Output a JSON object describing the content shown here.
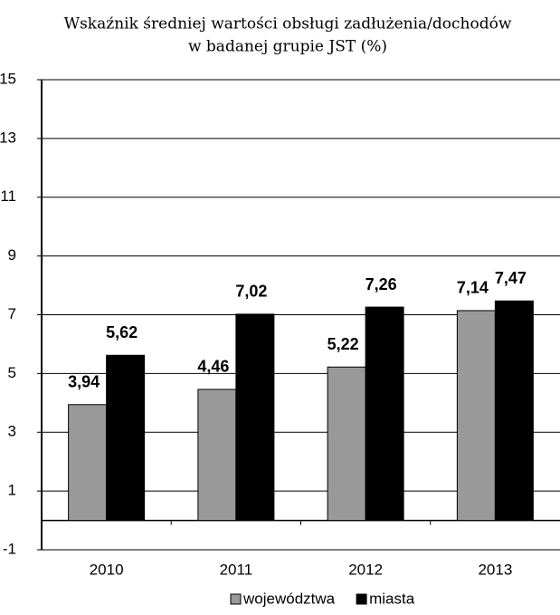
{
  "chart_data": {
    "type": "bar",
    "title": [
      "Wskaźnik średniej wartości obsługi zadłużenia/dochodów",
      "w badanej grupie JST (%)"
    ],
    "categories": [
      "2010",
      "2011",
      "2012",
      "2013"
    ],
    "series": [
      {
        "name": "województwa",
        "color": "#999999",
        "values": [
          3.94,
          4.46,
          5.22,
          7.14
        ],
        "value_labels": [
          "3,94",
          "4,46",
          "5,22",
          "7,14"
        ]
      },
      {
        "name": "miasta",
        "color": "#000000",
        "values": [
          5.62,
          7.02,
          7.26,
          7.47
        ],
        "value_labels": [
          "5,62",
          "7,02",
          "7,26",
          "7,47"
        ]
      }
    ],
    "ylim": [
      -1,
      15
    ],
    "yticks": [
      -1,
      1,
      3,
      5,
      7,
      9,
      11,
      13,
      15
    ],
    "grid": true,
    "legend": "bottom"
  }
}
